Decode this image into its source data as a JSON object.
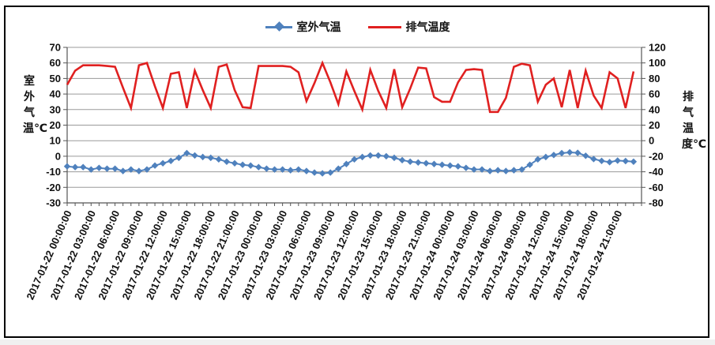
{
  "chart_data": {
    "type": "line",
    "title": "",
    "grid": "horizontal",
    "legend_position": "top-center",
    "x_labels": [
      "2017-01-22 00:00:00",
      "2017-01-22 03:00:00",
      "2017-01-22 06:00:00",
      "2017-01-22 09:00:00",
      "2017-01-22 12:00:00",
      "2017-01-22 15:00:00",
      "2017-01-22 18:00:00",
      "2017-01-22 21:00:00",
      "2017-01-23 00:00:00",
      "2017-01-23 03:00:00",
      "2017-01-23 06:00:00",
      "2017-01-23 09:00:00",
      "2017-01-23 12:00:00",
      "2017-01-23 15:00:00",
      "2017-01-23 18:00:00",
      "2017-01-23 21:00:00",
      "2017-01-24 00:00:00",
      "2017-01-24 03:00:00",
      "2017-01-24 06:00:00",
      "2017-01-24 09:00:00",
      "2017-01-24 12:00:00",
      "2017-01-24 15:00:00",
      "2017-01-24 18:00:00",
      "2017-01-24 21:00:00"
    ],
    "points_per_label": 3,
    "left_axis": {
      "title": "室外气温℃",
      "min": -30,
      "max": 70,
      "step": 10
    },
    "right_axis": {
      "title": "排气温度℃",
      "min": -80,
      "max": 120,
      "step": 20
    },
    "series": [
      {
        "name": "室外气温",
        "axis": "left",
        "color": "#4F81BD",
        "marker": "diamond",
        "values": [
          -6.5,
          -7,
          -7,
          -8.5,
          -7.5,
          -8,
          -8,
          -9.5,
          -8.5,
          -9.5,
          -8.5,
          -6,
          -4.5,
          -3,
          -1,
          2,
          0.5,
          -0.5,
          -1,
          -2,
          -3.5,
          -4.5,
          -5.5,
          -6,
          -7,
          -8,
          -8.5,
          -8.5,
          -9,
          -8.5,
          -9.5,
          -10.5,
          -11,
          -10.5,
          -8,
          -5,
          -2,
          -0.5,
          0.5,
          0.5,
          0,
          -1,
          -2.5,
          -3.5,
          -4,
          -4.5,
          -5,
          -5.5,
          -6,
          -6.5,
          -7.5,
          -8.5,
          -8.5,
          -9.5,
          -9,
          -9.5,
          -9,
          -8.5,
          -5.5,
          -2,
          -0.5,
          0.8,
          2,
          2.5,
          2.2,
          0.3,
          -1.8,
          -3,
          -3.8,
          -2.8,
          -3.1,
          -3.5
        ]
      },
      {
        "name": "排气温度",
        "axis": "right",
        "color": "#E02020",
        "marker": "none",
        "values": [
          72,
          90,
          97,
          97,
          97,
          96,
          95,
          68,
          42,
          97,
          100,
          70,
          42,
          86,
          88,
          42,
          90,
          65,
          42,
          95,
          98,
          65,
          43,
          42,
          96,
          96,
          96,
          96,
          95,
          88,
          51,
          74,
          100,
          75,
          47,
          89,
          64,
          40,
          91,
          64,
          42,
          92,
          43,
          67,
          94,
          93,
          56,
          50,
          50,
          75,
          91,
          92,
          91,
          37,
          37,
          55,
          95,
          99,
          97,
          50,
          72,
          80,
          43,
          91,
          42,
          90,
          58,
          42,
          88,
          80,
          42,
          89
        ]
      }
    ]
  }
}
